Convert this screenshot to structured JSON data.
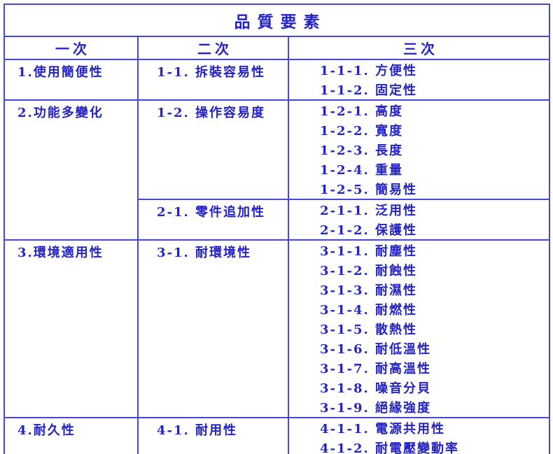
{
  "page": {
    "background": "#ffffff"
  },
  "colors": {
    "text": "#2323c8",
    "border": "#4646d8"
  },
  "table": {
    "title": "品質要素",
    "headers": [
      "一次",
      "二次",
      "三次"
    ],
    "groups": [
      {
        "primary": "1.使用簡便性",
        "subgroups": [
          {
            "secondary": "1-1. 拆裝容易性",
            "tertiary": [
              "1-1-1. 方便性",
              "1-1-2. 固定性"
            ]
          }
        ]
      },
      {
        "primary": "2.功能多變化",
        "subgroups": [
          {
            "secondary": "1-2. 操作容易度",
            "tertiary": [
              "1-2-1. 高度",
              "1-2-2. 寬度",
              "1-2-3. 長度",
              "1-2-4. 重量",
              "1-2-5. 簡易性"
            ]
          },
          {
            "secondary": "2-1. 零件追加性",
            "tertiary": [
              "2-1-1. 泛用性",
              "2-1-2. 保護性"
            ]
          }
        ]
      },
      {
        "primary": "3.環境適用性",
        "subgroups": [
          {
            "secondary": "3-1. 耐環境性",
            "tertiary": [
              "3-1-1. 耐塵性",
              "3-1-2. 耐蝕性",
              "3-1-3. 耐濕性",
              "3-1-4. 耐燃性",
              "3-1-5. 散熱性",
              "3-1-6. 耐低溫性",
              "3-1-7. 耐高溫性",
              "3-1-8. 噪音分貝",
              "3-1-9. 絕緣強度"
            ]
          }
        ]
      },
      {
        "primary": "4.耐久性",
        "subgroups": [
          {
            "secondary": "4-1. 耐用性",
            "tertiary": [
              "4-1-1. 電源共用性",
              "4-1-2. 耐電壓變動率"
            ]
          }
        ]
      }
    ]
  }
}
